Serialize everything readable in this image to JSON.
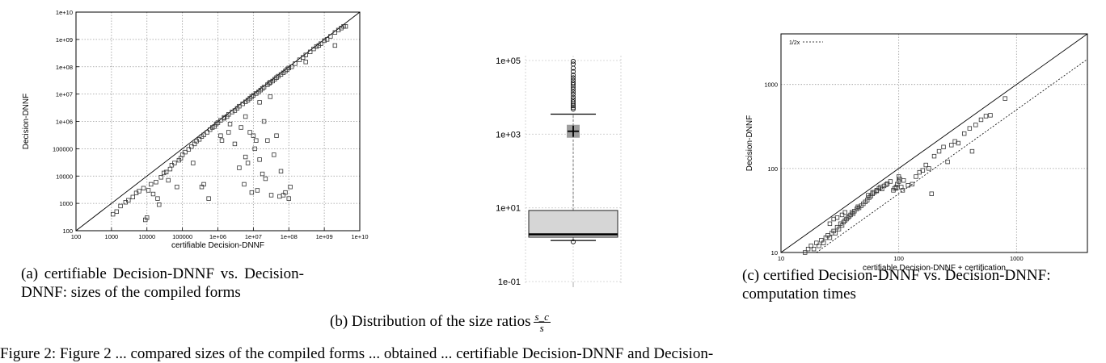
{
  "figures": {
    "a": {
      "caption": "(a)    certifiable    Decision-DNNF    vs. Decision-DNNF: sizes of the compiled forms"
    },
    "b": {
      "caption_prefix": "(b) Distribution of the size ratios",
      "frac_num": "s_c",
      "frac_den": "s"
    },
    "c": {
      "caption": "(c) certified Decision-DNNF vs. Decision-DNNF: computation times"
    }
  },
  "footer_text": "Figure 2: Figure 2 ... compared sizes of the compiled forms ... obtained ... certifiable Decision-DNNF and Decision-",
  "chart_data": [
    {
      "type": "scatter",
      "title": "",
      "xlabel": "certifiable Decision-DNNF",
      "ylabel": "Decision-DNNF",
      "x_scale": "log",
      "y_scale": "log",
      "xlim": [
        100,
        10000000000
      ],
      "ylim": [
        100,
        10000000000
      ],
      "x_ticks": [
        "100",
        "1000",
        "10000",
        "100000",
        "1e+06",
        "1e+07",
        "1e+08",
        "1e+09",
        "1e+10"
      ],
      "y_ticks": [
        "100",
        "1000",
        "10000",
        "100000",
        "1e+06",
        "1e+07",
        "1e+08",
        "1e+09",
        "1e+10"
      ],
      "grid": true,
      "reference_line": "y=x",
      "points": [
        [
          1100,
          400
        ],
        [
          1400,
          500
        ],
        [
          1800,
          800
        ],
        [
          2500,
          1100
        ],
        [
          3000,
          1300
        ],
        [
          4000,
          1700
        ],
        [
          5000,
          2400
        ],
        [
          6000,
          2800
        ],
        [
          8000,
          3600
        ],
        [
          9000,
          250
        ],
        [
          10000,
          300
        ],
        [
          11000,
          3000
        ],
        [
          13000,
          5000
        ],
        [
          15000,
          2200
        ],
        [
          18000,
          6000
        ],
        [
          20000,
          1500
        ],
        [
          22000,
          900
        ],
        [
          25000,
          9000
        ],
        [
          30000,
          13000
        ],
        [
          35000,
          14000
        ],
        [
          40000,
          7000
        ],
        [
          45000,
          18000
        ],
        [
          50000,
          25000
        ],
        [
          60000,
          30000
        ],
        [
          70000,
          4000
        ],
        [
          80000,
          38000
        ],
        [
          90000,
          45000
        ],
        [
          100000,
          60000
        ],
        [
          120000,
          75000
        ],
        [
          150000,
          95000
        ],
        [
          180000,
          120000
        ],
        [
          200000,
          30000
        ],
        [
          220000,
          150000
        ],
        [
          250000,
          190000
        ],
        [
          300000,
          220000
        ],
        [
          350000,
          4000
        ],
        [
          350000,
          280000
        ],
        [
          400000,
          5000
        ],
        [
          400000,
          320000
        ],
        [
          500000,
          400000
        ],
        [
          550000,
          1500
        ],
        [
          600000,
          500000
        ],
        [
          700000,
          600000
        ],
        [
          800000,
          650000
        ],
        [
          900000,
          800000
        ],
        [
          1000000,
          900000
        ],
        [
          1200000,
          1100000
        ],
        [
          1300000,
          200000
        ],
        [
          1500000,
          1300000
        ],
        [
          1800000,
          1500000
        ],
        [
          2000000,
          400000
        ],
        [
          2000000,
          1800000
        ],
        [
          2500000,
          2200000
        ],
        [
          3000000,
          2500000
        ],
        [
          3500000,
          3000000
        ],
        [
          4000000,
          3600000
        ],
        [
          4000000,
          20000
        ],
        [
          5000000,
          4400000
        ],
        [
          5500000,
          5000
        ],
        [
          6000000,
          5200000
        ],
        [
          7000000,
          6000000
        ],
        [
          8000000,
          7000000
        ],
        [
          9000000,
          8000000
        ],
        [
          10000000,
          9000000
        ],
        [
          10000000,
          300000
        ],
        [
          11000000,
          100000
        ],
        [
          12000000,
          10500000
        ],
        [
          13000000,
          3000
        ],
        [
          14000000,
          12000000
        ],
        [
          15000000,
          40000
        ],
        [
          16000000,
          14000000
        ],
        [
          18000000,
          16000000
        ],
        [
          20000000,
          18000000
        ],
        [
          20000000,
          1000000
        ],
        [
          22000000,
          8000
        ],
        [
          25000000,
          22000000
        ],
        [
          25000000,
          200000
        ],
        [
          28000000,
          25000000
        ],
        [
          30000000,
          27000000
        ],
        [
          32000000,
          2000
        ],
        [
          35000000,
          30000000
        ],
        [
          38000000,
          60000
        ],
        [
          40000000,
          35000000
        ],
        [
          45000000,
          40000000
        ],
        [
          50000000,
          45000000
        ],
        [
          55000000,
          1800
        ],
        [
          60000000,
          52000000
        ],
        [
          60000000,
          15000
        ],
        [
          70000000,
          60000000
        ],
        [
          80000000,
          70000000
        ],
        [
          80000000,
          2500
        ],
        [
          90000000,
          80000000
        ],
        [
          100000000,
          90000000
        ],
        [
          100000000,
          1500
        ],
        [
          110000000,
          4000
        ],
        [
          120000000,
          100000000
        ],
        [
          150000000,
          130000000
        ],
        [
          200000000,
          180000000
        ],
        [
          250000000,
          220000000
        ],
        [
          300000000,
          270000000
        ],
        [
          400000000,
          350000000
        ],
        [
          500000000,
          450000000
        ],
        [
          600000000,
          550000000
        ],
        [
          700000000,
          600000000
        ],
        [
          800000000,
          700000000
        ],
        [
          1000000000,
          900000000
        ],
        [
          1200000000,
          1000000000
        ],
        [
          1500000000,
          1300000000
        ],
        [
          2000000000,
          1800000000
        ],
        [
          2500000000,
          2200000000
        ],
        [
          3000000000,
          2600000000
        ],
        [
          3500000000,
          3000000000
        ],
        [
          4000000000,
          3000000000
        ],
        [
          300000000,
          150000000
        ],
        [
          1200000,
          300000
        ],
        [
          2200000,
          800000
        ],
        [
          6000000,
          1500000
        ],
        [
          8000000,
          400000
        ],
        [
          15000000,
          5000000
        ],
        [
          3000000,
          150000
        ],
        [
          4500000,
          600000
        ],
        [
          7000000,
          30000
        ],
        [
          9000000,
          2500
        ],
        [
          18000000,
          12000
        ],
        [
          45000000,
          300000
        ],
        [
          1500000,
          1400000
        ],
        [
          6000000,
          50000
        ],
        [
          12000000,
          200000
        ],
        [
          30000000,
          8000000
        ],
        [
          70000000,
          2000
        ],
        [
          2000000000,
          600000000
        ]
      ]
    },
    {
      "type": "box",
      "title": "",
      "y_scale": "log",
      "ylim": [
        0.1,
        100000
      ],
      "y_ticks": [
        "1e-01",
        "1e+01",
        "1e+03",
        "1e+05"
      ],
      "box": {
        "whisker_low": 1.3,
        "q1": 1.6,
        "median": 1.9,
        "q3": 8.5,
        "whisker_high": 3500,
        "mean": 1200
      },
      "outliers_high": [
        4800,
        5300,
        5900,
        6600,
        7500,
        8600,
        10000,
        12000,
        14000,
        16500,
        19000,
        22000,
        25000,
        29000,
        34000,
        40000,
        50000,
        62000,
        80000,
        95000
      ],
      "outliers_low": [
        1.2
      ]
    },
    {
      "type": "scatter",
      "title": "",
      "xlabel": "certifiable Decision-DNNF + certification",
      "ylabel": "Decision-DNNF",
      "x_scale": "log",
      "y_scale": "log",
      "xlim": [
        10,
        4000
      ],
      "ylim": [
        10,
        4000
      ],
      "x_ticks": [
        "10",
        "100",
        "1000"
      ],
      "y_ticks": [
        "10",
        "100",
        "1000"
      ],
      "grid": true,
      "reference_line": "y=x",
      "series": [
        {
          "name": "1/2x"
        }
      ],
      "points": [
        [
          16,
          10
        ],
        [
          17,
          11
        ],
        [
          18,
          12
        ],
        [
          19,
          11
        ],
        [
          20,
          13
        ],
        [
          21,
          12
        ],
        [
          22,
          14
        ],
        [
          23,
          13
        ],
        [
          24,
          15
        ],
        [
          25,
          16
        ],
        [
          26,
          15
        ],
        [
          27,
          17
        ],
        [
          28,
          18
        ],
        [
          29,
          17
        ],
        [
          30,
          20
        ],
        [
          31,
          19
        ],
        [
          32,
          22
        ],
        [
          33,
          21
        ],
        [
          34,
          23
        ],
        [
          35,
          24
        ],
        [
          36,
          25
        ],
        [
          37,
          26
        ],
        [
          38,
          27
        ],
        [
          39,
          28
        ],
        [
          40,
          30
        ],
        [
          41,
          29
        ],
        [
          42,
          31
        ],
        [
          44,
          33
        ],
        [
          45,
          35
        ],
        [
          46,
          34
        ],
        [
          48,
          36
        ],
        [
          50,
          38
        ],
        [
          52,
          40
        ],
        [
          54,
          42
        ],
        [
          56,
          45
        ],
        [
          58,
          47
        ],
        [
          60,
          50
        ],
        [
          62,
          52
        ],
        [
          65,
          55
        ],
        [
          68,
          58
        ],
        [
          70,
          60
        ],
        [
          72,
          57
        ],
        [
          75,
          62
        ],
        [
          78,
          64
        ],
        [
          80,
          66
        ],
        [
          85,
          70
        ],
        [
          90,
          55
        ],
        [
          92,
          58
        ],
        [
          95,
          60
        ],
        [
          97,
          65
        ],
        [
          100,
          70
        ],
        [
          100,
          80
        ],
        [
          102,
          75
        ],
        [
          105,
          60
        ],
        [
          108,
          55
        ],
        [
          110,
          72
        ],
        [
          120,
          63
        ],
        [
          130,
          65
        ],
        [
          140,
          80
        ],
        [
          150,
          90
        ],
        [
          160,
          95
        ],
        [
          170,
          110
        ],
        [
          180,
          100
        ],
        [
          190,
          50
        ],
        [
          200,
          140
        ],
        [
          220,
          160
        ],
        [
          240,
          180
        ],
        [
          260,
          120
        ],
        [
          280,
          190
        ],
        [
          300,
          210
        ],
        [
          320,
          200
        ],
        [
          360,
          260
        ],
        [
          400,
          300
        ],
        [
          420,
          160
        ],
        [
          450,
          330
        ],
        [
          500,
          380
        ],
        [
          550,
          420
        ],
        [
          600,
          430
        ],
        [
          800,
          680
        ],
        [
          35,
          30
        ],
        [
          33,
          28
        ],
        [
          28,
          25
        ],
        [
          26,
          22
        ],
        [
          30,
          26
        ],
        [
          55,
          48
        ],
        [
          60,
          52
        ],
        [
          65,
          54
        ],
        [
          95,
          58
        ]
      ]
    }
  ]
}
